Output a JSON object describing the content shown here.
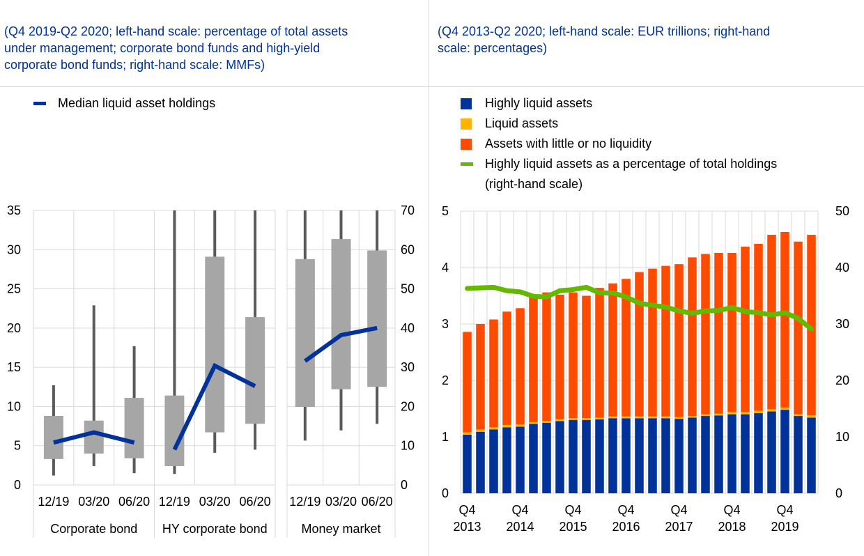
{
  "left": {
    "subtitle_lines": [
      "(Q4 2019-Q2 2020; left-hand scale: percentage of total assets",
      "under management; corporate bond funds and high-yield",
      "corporate bond funds; right-hand scale: MMFs)"
    ],
    "legend": [
      {
        "label": "Median liquid asset holdings",
        "color": "#003299"
      }
    ]
  },
  "right": {
    "subtitle_lines": [
      "(Q4 2013-Q2 2020; left-hand scale: EUR trillions; right-hand",
      "scale: percentages)"
    ],
    "legend": [
      {
        "label": "Highly liquid assets",
        "color": "#003299",
        "kind": "box"
      },
      {
        "label": "Liquid assets",
        "color": "#FFB400",
        "kind": "box"
      },
      {
        "label": "Assets with little or no liquidity",
        "color": "#FF4B00",
        "kind": "box"
      },
      {
        "label": "Highly liquid assets as a percentage of total holdings",
        "label2": "(right-hand scale)",
        "color": "#65B800",
        "kind": "line"
      }
    ]
  },
  "colors": {
    "box": "#A6A6A6",
    "whisker": "#5A5A5A",
    "median": "#003299",
    "grid": "#D9D9D9"
  },
  "chart_data": [
    {
      "type": "boxplot",
      "title": "",
      "groups": [
        {
          "name": "Corporate bond",
          "axis": "left",
          "categories": [
            "12/19",
            "03/20",
            "06/20"
          ],
          "whisker_low": [
            1.2,
            2.4,
            1.5
          ],
          "q1": [
            3.3,
            4.0,
            3.4
          ],
          "q3": [
            8.8,
            8.2,
            11.1
          ],
          "whisker_high": [
            12.7,
            22.9,
            17.7
          ],
          "median": [
            5.4,
            6.7,
            5.4
          ]
        },
        {
          "name": "HY corporate bond",
          "axis": "left",
          "categories": [
            "12/19",
            "03/20",
            "06/20"
          ],
          "whisker_low": [
            1.4,
            4.1,
            4.5
          ],
          "q1": [
            2.4,
            6.7,
            7.8
          ],
          "q3": [
            11.4,
            29.1,
            21.4
          ],
          "whisker_high": [
            35,
            35,
            35
          ],
          "median": [
            4.5,
            15.2,
            12.6
          ]
        },
        {
          "name": "Money market",
          "axis": "right",
          "categories": [
            "12/19",
            "03/20",
            "06/20"
          ],
          "whisker_low": [
            11.3,
            13.9,
            15.6
          ],
          "q1": [
            19.9,
            24.4,
            25.0
          ],
          "q3": [
            57.6,
            62.7,
            59.8
          ],
          "whisker_high": [
            70,
            70,
            70
          ],
          "median": [
            31.6,
            38.2,
            40.0
          ]
        }
      ],
      "series_line": "Median liquid asset holdings",
      "ylim_left": [
        0,
        35
      ],
      "yticks_left": [
        0,
        5,
        10,
        15,
        20,
        25,
        30,
        35
      ],
      "ylim_right": [
        0,
        70
      ],
      "yticks_right": [
        0,
        10,
        20,
        30,
        40,
        50,
        60,
        70
      ],
      "grid": true
    },
    {
      "type": "bar",
      "stacked": true,
      "title": "",
      "categories": [
        "Q4 2013",
        "Q1 2014",
        "Q2 2014",
        "Q3 2014",
        "Q4 2014",
        "Q1 2015",
        "Q2 2015",
        "Q3 2015",
        "Q4 2015",
        "Q1 2016",
        "Q2 2016",
        "Q3 2016",
        "Q4 2016",
        "Q1 2017",
        "Q2 2017",
        "Q3 2017",
        "Q4 2017",
        "Q1 2018",
        "Q2 2018",
        "Q3 2018",
        "Q4 2018",
        "Q1 2019",
        "Q2 2019",
        "Q3 2019",
        "Q4 2019",
        "Q1 2020",
        "Q2 2020"
      ],
      "xtick_labels": [
        {
          "index": 0,
          "line1": "Q4",
          "line2": "2013"
        },
        {
          "index": 4,
          "line1": "Q4",
          "line2": "2014"
        },
        {
          "index": 8,
          "line1": "Q4",
          "line2": "2015"
        },
        {
          "index": 12,
          "line1": "Q4",
          "line2": "2016"
        },
        {
          "index": 16,
          "line1": "Q4",
          "line2": "2017"
        },
        {
          "index": 20,
          "line1": "Q4",
          "line2": "2018"
        },
        {
          "index": 24,
          "line1": "Q4",
          "line2": "2019"
        }
      ],
      "series": [
        {
          "name": "Highly liquid assets",
          "axis": "left",
          "values": [
            1.04,
            1.09,
            1.13,
            1.17,
            1.18,
            1.23,
            1.25,
            1.28,
            1.3,
            1.3,
            1.31,
            1.33,
            1.33,
            1.33,
            1.33,
            1.33,
            1.32,
            1.34,
            1.37,
            1.38,
            1.4,
            1.4,
            1.42,
            1.45,
            1.48,
            1.37,
            1.34
          ]
        },
        {
          "name": "Liquid assets",
          "axis": "left",
          "values": [
            0.04,
            0.04,
            0.04,
            0.04,
            0.04,
            0.03,
            0.03,
            0.03,
            0.03,
            0.03,
            0.03,
            0.03,
            0.03,
            0.03,
            0.03,
            0.03,
            0.03,
            0.03,
            0.03,
            0.03,
            0.04,
            0.04,
            0.04,
            0.04,
            0.04,
            0.03,
            0.04
          ]
        },
        {
          "name": "Assets with little or no liquidity",
          "axis": "left",
          "values": [
            1.78,
            1.87,
            1.91,
            2.01,
            2.06,
            2.24,
            2.28,
            2.21,
            2.23,
            2.17,
            2.3,
            2.36,
            2.44,
            2.56,
            2.62,
            2.67,
            2.71,
            2.81,
            2.84,
            2.85,
            2.82,
            2.93,
            2.96,
            3.09,
            3.11,
            3.06,
            3.2
          ]
        },
        {
          "name": "Highly liquid assets as a percentage of total holdings (right-hand scale)",
          "type": "line",
          "axis": "right",
          "values": [
            36.3,
            36.4,
            36.5,
            35.9,
            35.7,
            34.9,
            34.8,
            35.9,
            36.1,
            36.5,
            35.5,
            35.5,
            34.8,
            33.7,
            33.3,
            33.0,
            32.3,
            31.9,
            32.3,
            32.4,
            32.9,
            32.2,
            32.0,
            31.6,
            32.0,
            31.0,
            29.1
          ]
        }
      ],
      "ylim_left": [
        0,
        5
      ],
      "yticks_left": [
        0,
        1,
        2,
        3,
        4,
        5
      ],
      "ylim_right": [
        0,
        50
      ],
      "yticks_right": [
        0,
        10,
        20,
        30,
        40,
        50
      ],
      "xlabel": "",
      "ylabel": "",
      "grid": true,
      "legend_position": "top"
    }
  ]
}
